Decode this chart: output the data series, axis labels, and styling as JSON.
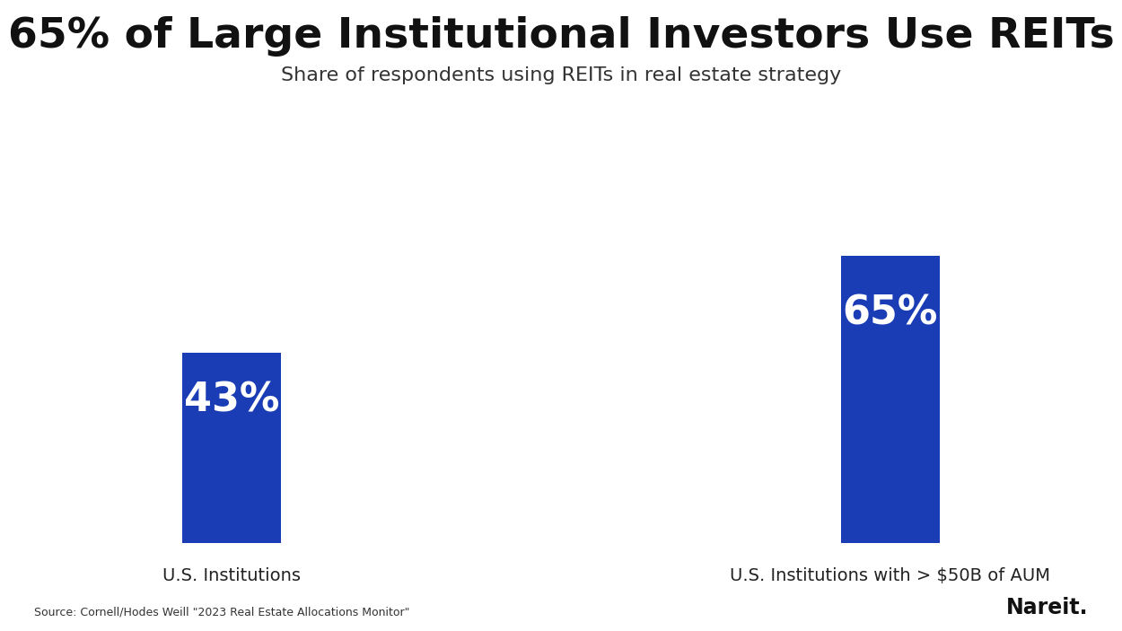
{
  "title": "65% of Large Institutional Investors Use REITs",
  "subtitle": "Share of respondents using REITs in real estate strategy",
  "categories": [
    "U.S. Institutions",
    "U.S. Institutions with > $50B of AUM"
  ],
  "values": [
    43,
    65
  ],
  "labels": [
    "43%",
    "65%"
  ],
  "bar_color": "#1A3DB5",
  "bar_width": 0.3,
  "label_color": "#ffffff",
  "title_fontsize": 34,
  "subtitle_fontsize": 16,
  "label_fontsize": 32,
  "xlabel_fontsize": 14,
  "background_color": "#ffffff",
  "source_text": "Source: Cornell/Hodes Weill \"2023 Real Estate Allocations Monitor\"",
  "nareit_text": "Nareit.",
  "ylim": [
    0,
    80
  ],
  "bar_positions": [
    1,
    3
  ]
}
